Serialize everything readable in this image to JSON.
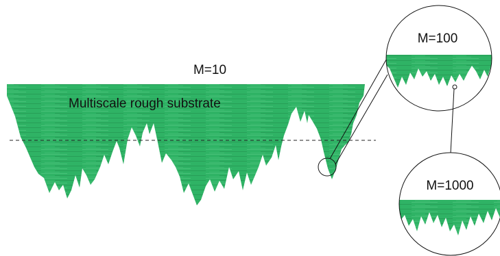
{
  "labels": {
    "main_scale": "M=10",
    "substrate": "Multiscale rough substrate",
    "zoom1_scale": "M=100",
    "zoom2_scale": "M=1000"
  },
  "colors": {
    "substrate_fill": "#2fb365",
    "substrate_dark": "#1f8a4a",
    "substrate_light": "#5ccb88",
    "outline": "#111111"
  }
}
